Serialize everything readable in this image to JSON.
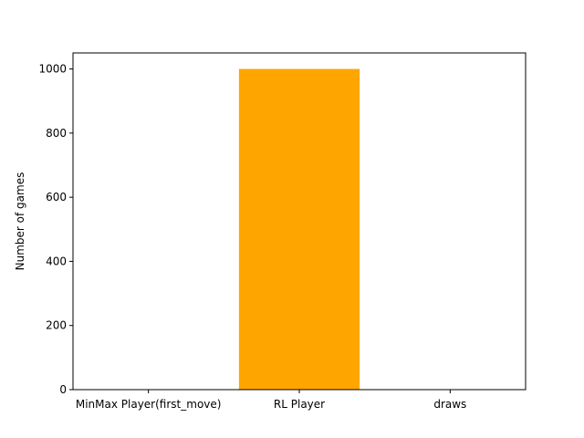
{
  "chart_data": {
    "type": "bar",
    "categories": [
      "MinMax Player(first_move)",
      "RL Player",
      "draws"
    ],
    "values": [
      0,
      1000,
      0
    ],
    "ylabel": "Number of games",
    "ylim": [
      0,
      1050
    ],
    "yticks": [
      0,
      200,
      400,
      600,
      800,
      1000
    ],
    "grid": false,
    "bar_color": "#ffa500"
  }
}
